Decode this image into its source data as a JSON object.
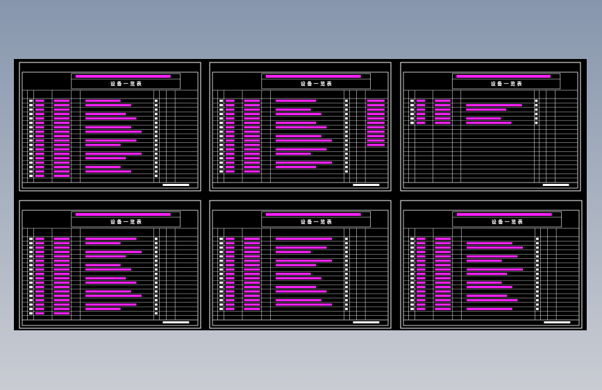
{
  "sheets": [
    {
      "title": "设 备 一 览 表"
    },
    {
      "title": "设 备 一 览 表"
    },
    {
      "title": "设 备 一 览 表"
    },
    {
      "title": "设 备 一 览 表"
    },
    {
      "title": "设 备 一 览 表"
    },
    {
      "title": "设 备 一 览 表"
    }
  ]
}
